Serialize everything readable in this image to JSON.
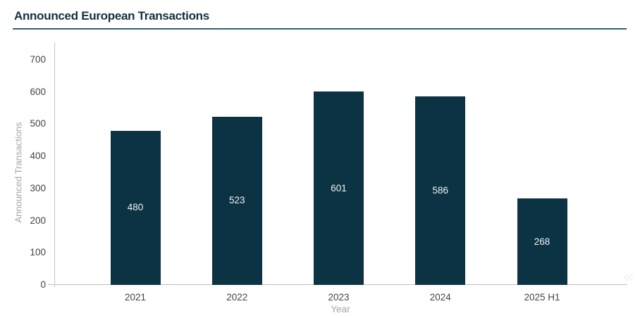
{
  "header": {
    "title": "Announced European Transactions"
  },
  "chart_data": {
    "type": "bar",
    "title": "Announced European Transactions",
    "categories": [
      "2021",
      "2022",
      "2023",
      "2024",
      "2025 H1"
    ],
    "values": [
      480,
      523,
      601,
      586,
      268
    ],
    "value_labels": [
      "480",
      "523",
      "601",
      "586",
      "268"
    ],
    "xlabel": "Year",
    "ylabel": "Announced Transactions",
    "ylim": [
      0,
      700
    ],
    "yticks": [
      0,
      100,
      200,
      300,
      400,
      500,
      600,
      700
    ],
    "grid": false,
    "legend_position": "none",
    "bar_color": "#0c3344",
    "value_label_color": "#f0f3f4"
  },
  "colors": {
    "title": "#14313f",
    "divider": "#2e6073",
    "axis_line": "#c6c6c6",
    "tick_label": "#444444",
    "axis_title": "#a6a6a6",
    "background": "#ffffff"
  }
}
